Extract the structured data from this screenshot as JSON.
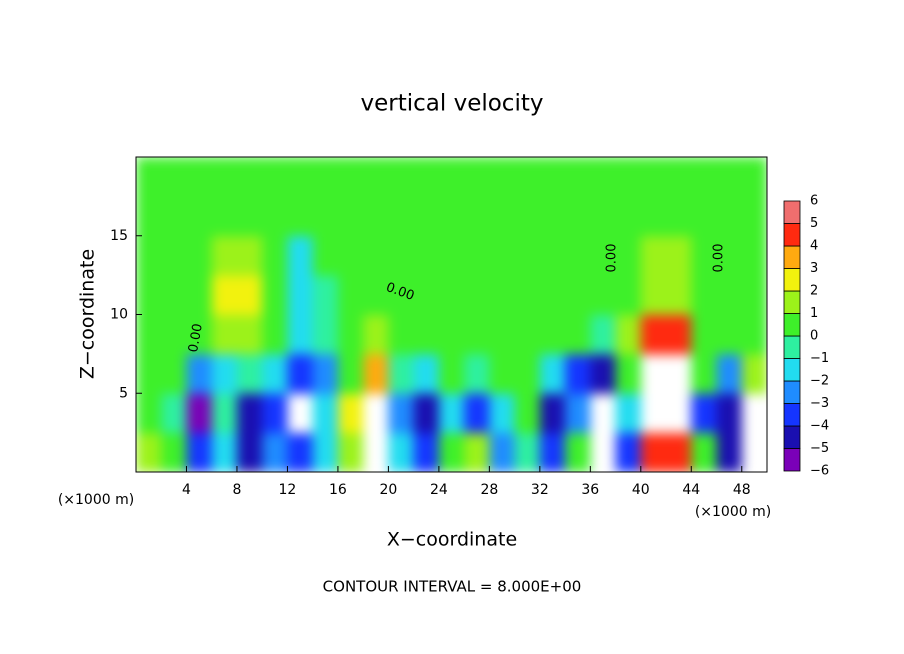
{
  "chart_data": {
    "type": "contour",
    "title": "vertical velocity",
    "x_label": "X−coordinate",
    "y_label": "Z−coordinate",
    "x_unit_left": "(×1000 m)",
    "x_unit_right": "(×1000 m)",
    "footnote": "CONTOUR INTERVAL = 8.000E+00",
    "contour_labels": [
      "0.00",
      "0.00",
      "0.00",
      "0.00"
    ],
    "xlim": [
      0,
      50
    ],
    "ylim": [
      0,
      20
    ],
    "xticks": [
      4,
      8,
      12,
      16,
      20,
      24,
      28,
      32,
      36,
      40,
      44,
      48
    ],
    "yticks": [
      5,
      10,
      15
    ],
    "x": [
      1,
      3,
      5,
      7,
      9,
      11,
      13,
      15,
      17,
      19,
      21,
      23,
      25,
      27,
      29,
      31,
      33,
      35,
      37,
      39,
      41,
      43,
      45,
      47,
      49
    ],
    "y": [
      1.25,
      3.75,
      6.25,
      8.75,
      11.25,
      13.75,
      16.25,
      18.75
    ],
    "z": [
      [
        2,
        0.5,
        -3.5,
        -1,
        -4,
        -2,
        -3,
        -1,
        2,
        7,
        -1,
        -3,
        0.5,
        1.5,
        -2,
        -0.5,
        -3,
        0.5,
        -6.5,
        -3,
        5,
        5,
        0.5,
        -4,
        7
      ],
      [
        1,
        -0.5,
        -5,
        -0.5,
        -4,
        -3,
        -6.5,
        -1,
        3,
        7,
        -2,
        -4,
        -1,
        -3,
        -1,
        0.5,
        -4,
        -2,
        -6.5,
        -1,
        7,
        7,
        -3,
        -4,
        7
      ],
      [
        0.5,
        0.5,
        -2,
        -1,
        -0.5,
        -1,
        -3,
        -2,
        1,
        4,
        -0.5,
        -1.5,
        0.5,
        -0.5,
        0.5,
        0.5,
        -1,
        -3,
        -4,
        0.5,
        7,
        7,
        1,
        -2,
        2
      ],
      [
        0.5,
        0.5,
        0.5,
        1.5,
        2,
        0.5,
        -1,
        -0.5,
        0.5,
        1.5,
        1,
        0.5,
        0.5,
        0.5,
        0.5,
        0.5,
        0.5,
        0.5,
        -0.5,
        1.5,
        5,
        5,
        1,
        0.5,
        0.5
      ],
      [
        0.5,
        0.5,
        1,
        3,
        3,
        1,
        -1.5,
        -0.5,
        0.5,
        0.5,
        0.5,
        0.5,
        0.5,
        0.5,
        0.5,
        0.5,
        0.5,
        0.5,
        0.5,
        0.5,
        2,
        2,
        0.5,
        0.5,
        0.5
      ],
      [
        0.5,
        0.5,
        1,
        2,
        1.5,
        0.5,
        -1,
        0.5,
        0.5,
        0.5,
        0.5,
        0.5,
        0.5,
        0.5,
        0.5,
        0.5,
        0.5,
        0.5,
        0.5,
        0.5,
        1.5,
        1.5,
        0.5,
        0.5,
        0.5
      ],
      [
        0.5,
        0.5,
        0.8,
        1,
        0.8,
        0.5,
        0.5,
        0.5,
        0.5,
        0.5,
        0.5,
        0.5,
        0.5,
        0.5,
        0.5,
        0.5,
        0.5,
        0.5,
        0.5,
        0.5,
        1,
        1,
        0.5,
        0.5,
        0.5
      ],
      [
        0.5,
        0.5,
        0.5,
        0.5,
        0.5,
        0.5,
        0.5,
        0.5,
        0.5,
        0.5,
        0.5,
        0.5,
        0.5,
        0.5,
        0.5,
        0.5,
        0.5,
        0.5,
        0.5,
        0.5,
        0.5,
        0.5,
        0.5,
        0.5,
        0.5
      ]
    ],
    "levels": [
      {
        "value": -6,
        "label": "−6"
      },
      {
        "value": -5,
        "label": "−5"
      },
      {
        "value": -4,
        "label": "−4"
      },
      {
        "value": -3,
        "label": "−3"
      },
      {
        "value": -2,
        "label": "−2"
      },
      {
        "value": -1,
        "label": "−1"
      },
      0,
      1,
      2,
      3,
      4,
      5,
      6
    ],
    "colors": [
      "#7a00b8",
      "#1a0fb0",
      "#1535ff",
      "#1f8cff",
      "#22dcf0",
      "#2ef0a0",
      "#3ef02a",
      "#9cf21a",
      "#f2f20e",
      "#ffaa10",
      "#ff2a10",
      "#f06e6e"
    ],
    "over_color": "#ffffff",
    "under_color": "#ffffff"
  }
}
